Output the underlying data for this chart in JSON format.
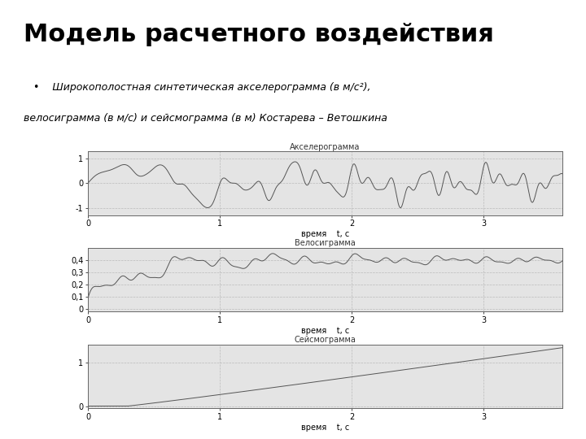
{
  "title": "Модель расчетного воздействия",
  "bullet_line1": "   •    Широкополостная синтетическая акселерограмма (в м/с²),",
  "bullet_line2": "велосиграмма (в м/с) и сейсмограмма (в м) Костарева – Ветошкина",
  "plot1_title": "Акселерограмма",
  "plot2_title": "Велосиграмма",
  "plot3_title": "Сейсмограмма",
  "xlabel": "время    t, с",
  "t_max": 3.6,
  "t_points": 3000,
  "line_color": "#555555",
  "grid_color": "#bbbbbb",
  "plot_bg": "#e4e4e4",
  "outer_bg": "#d8d8d8",
  "title_fontsize": 22,
  "label_fontsize": 7,
  "tick_fontsize": 7,
  "subplot_title_fontsize": 7
}
